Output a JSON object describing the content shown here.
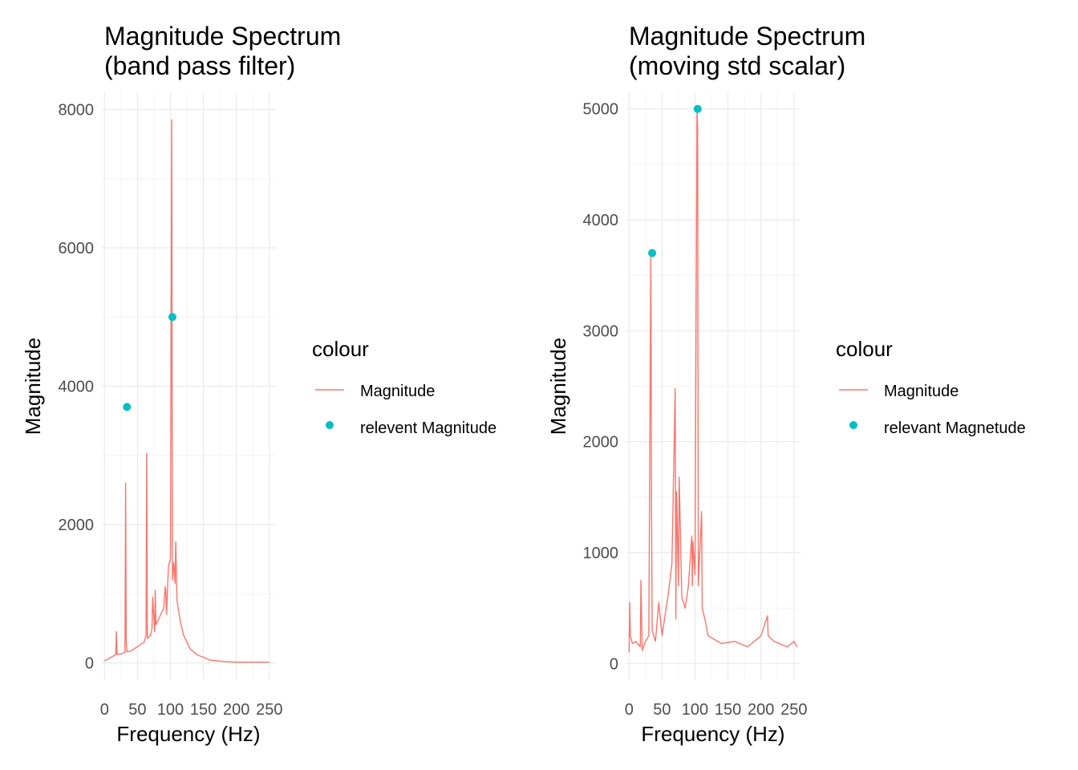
{
  "colors": {
    "line": "#F8766D",
    "point": "#00BFC4",
    "grid_major": "#EBEBEB",
    "grid_minor": "#F4F4F4"
  },
  "chart_data": [
    {
      "type": "line",
      "title_lines": [
        "Magnitude Spectrum",
        " (band pass filter)"
      ],
      "xlabel": "Frequency (Hz)",
      "ylabel": "Magnitude",
      "xlim": [
        -4,
        260
      ],
      "ylim": [
        -250,
        8250
      ],
      "x_ticks": [
        0,
        50,
        100,
        150,
        200,
        250
      ],
      "x_tick_labels": [
        "0",
        "50",
        "100",
        "150",
        "200",
        "250"
      ],
      "y_ticks": [
        0,
        2000,
        4000,
        6000,
        8000
      ],
      "y_tick_labels": [
        "0",
        "2000",
        "4000",
        "6000",
        "8000"
      ],
      "grid": true,
      "legend": {
        "title": "colour",
        "position": "right",
        "entries": [
          "Magnitude",
          "relevent Magnitude"
        ]
      },
      "series": [
        {
          "name": "Magnitude",
          "kind": "line",
          "x": [
            0,
            10,
            17,
            18,
            19,
            25,
            31,
            32,
            33,
            34,
            40,
            60,
            63,
            64,
            65,
            70,
            72,
            73,
            76,
            77,
            78,
            90,
            92,
            93,
            94,
            97,
            100,
            102,
            103,
            105,
            107,
            108,
            110,
            115,
            120,
            125,
            130,
            140,
            150,
            160,
            180,
            200,
            250
          ],
          "y": [
            30,
            80,
            120,
            450,
            120,
            130,
            150,
            2600,
            300,
            160,
            170,
            300,
            400,
            3030,
            350,
            400,
            500,
            950,
            450,
            1050,
            550,
            800,
            1100,
            1050,
            700,
            1400,
            1500,
            7850,
            1200,
            1450,
            1150,
            1750,
            900,
            600,
            400,
            300,
            200,
            120,
            80,
            40,
            20,
            10,
            10
          ]
        },
        {
          "name": "relevent Magnitude",
          "kind": "point",
          "x": [
            34,
            103
          ],
          "y": [
            3700,
            5000
          ]
        }
      ]
    },
    {
      "type": "line",
      "title_lines": [
        "Magnitude Spectrum",
        " (moving std scalar)"
      ],
      "xlabel": "Frequency (Hz)",
      "ylabel": "Magnitude",
      "xlim": [
        -4,
        260
      ],
      "ylim": [
        -150,
        5150
      ],
      "x_ticks": [
        0,
        50,
        100,
        150,
        200,
        250
      ],
      "x_tick_labels": [
        "0",
        "50",
        "100",
        "150",
        "200",
        "250"
      ],
      "y_ticks": [
        0,
        1000,
        2000,
        3000,
        4000,
        5000
      ],
      "y_tick_labels": [
        "0",
        "1000",
        "2000",
        "3000",
        "4000",
        "5000"
      ],
      "grid": true,
      "legend": {
        "title": "colour",
        "position": "right",
        "entries": [
          "Magnitude",
          "relevant Magnetude"
        ]
      },
      "series": [
        {
          "name": "Magnitude",
          "kind": "line",
          "x": [
            0,
            1,
            2,
            5,
            10,
            17,
            18,
            20,
            25,
            30,
            33,
            34,
            35,
            40,
            45,
            50,
            60,
            65,
            70,
            71,
            72,
            75,
            76,
            80,
            85,
            90,
            95,
            96,
            97,
            100,
            103,
            104,
            105,
            110,
            111,
            115,
            120,
            140,
            160,
            180,
            200,
            210,
            211,
            220,
            240,
            250,
            255
          ],
          "y": [
            100,
            550,
            250,
            180,
            200,
            150,
            750,
            120,
            200,
            250,
            3700,
            1500,
            300,
            200,
            550,
            250,
            650,
            900,
            2480,
            400,
            1550,
            700,
            1680,
            600,
            500,
            700,
            1150,
            700,
            1100,
            800,
            5000,
            4820,
            700,
            1370,
            500,
            400,
            250,
            180,
            200,
            150,
            250,
            430,
            250,
            200,
            150,
            200,
            150
          ]
        },
        {
          "name": "relevant Magnetude",
          "kind": "point",
          "x": [
            35,
            104
          ],
          "y": [
            3700,
            5000
          ]
        }
      ]
    }
  ]
}
